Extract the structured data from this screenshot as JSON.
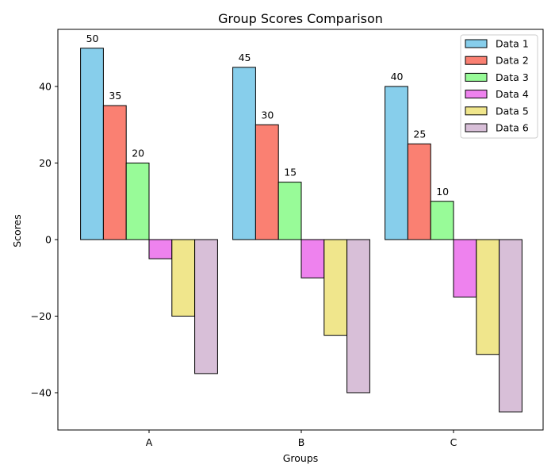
{
  "chart_data": {
    "type": "bar",
    "title": "Group Scores Comparison",
    "xlabel": "Groups",
    "ylabel": "Scores",
    "categories": [
      "A",
      "B",
      "C"
    ],
    "ylim": [
      -50,
      55
    ],
    "yticks": [
      -40,
      -20,
      0,
      20,
      40
    ],
    "ytick_labels": [
      "−40",
      "−20",
      "0",
      "20",
      "40"
    ],
    "grid": false,
    "legend_position": "top-right",
    "series": [
      {
        "name": "Data 1",
        "color": "#87CEEB",
        "values": [
          50,
          45,
          40
        ],
        "labels": [
          "50",
          "45",
          "40"
        ]
      },
      {
        "name": "Data 2",
        "color": "#FA8072",
        "values": [
          35,
          30,
          25
        ],
        "labels": [
          "35",
          "30",
          "25"
        ]
      },
      {
        "name": "Data 3",
        "color": "#98FB98",
        "values": [
          20,
          15,
          10
        ],
        "labels": [
          "20",
          "15",
          "10"
        ]
      },
      {
        "name": "Data 4",
        "color": "#EE82EE",
        "values": [
          -5,
          -10,
          -15
        ]
      },
      {
        "name": "Data 5",
        "color": "#F0E68C",
        "values": [
          -20,
          -25,
          -30
        ]
      },
      {
        "name": "Data 6",
        "color": "#D8BFD8",
        "values": [
          -35,
          -40,
          -45
        ]
      }
    ]
  }
}
